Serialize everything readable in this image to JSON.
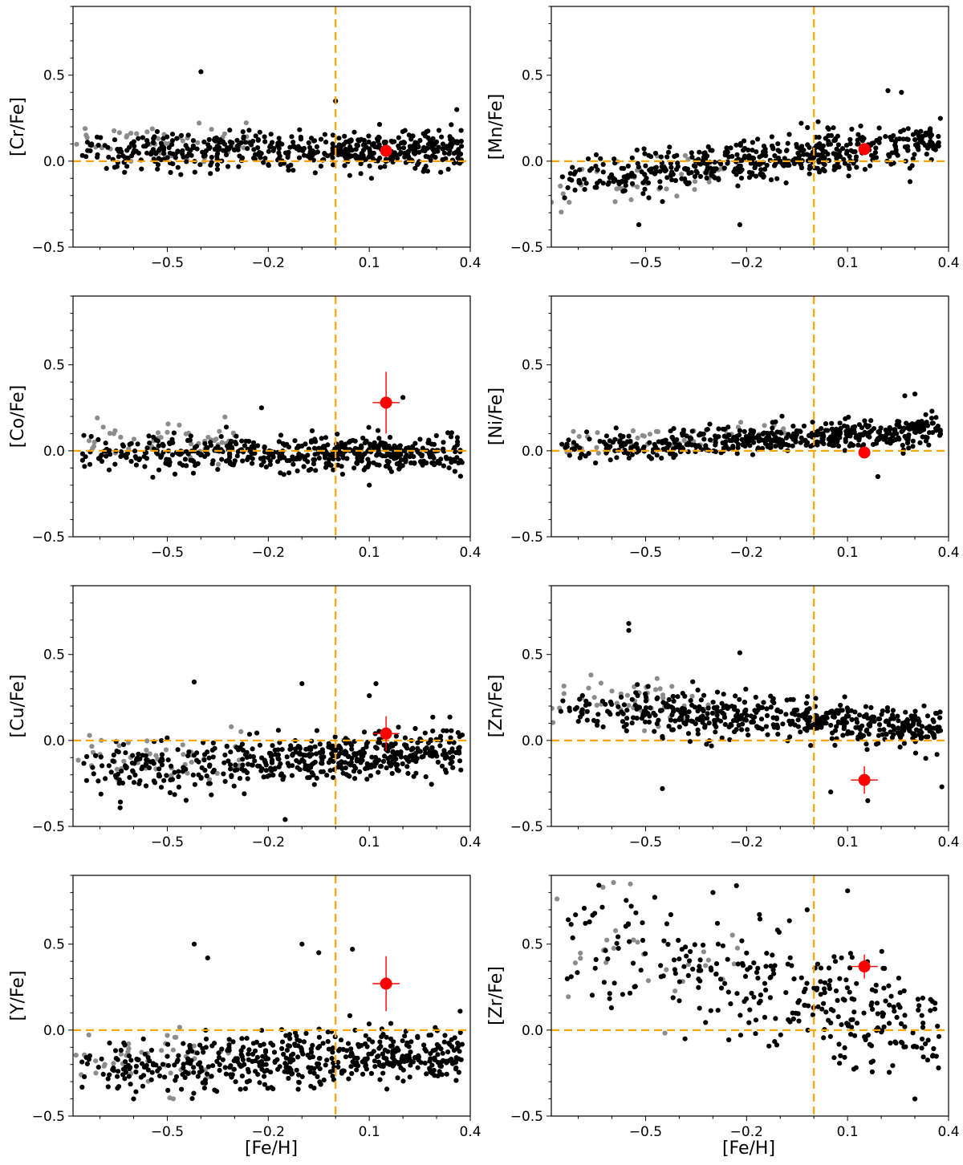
{
  "figure": {
    "shared_xlabel": "[Fe/H]"
  },
  "colors": {
    "sample_black": "#000000",
    "sample_gray": "#8c8c8c",
    "target_red": "#ff0000",
    "reference_orange": "#ffa500"
  },
  "chart_data": [
    {
      "type": "scatter",
      "panel": "Cr",
      "ylabel": "[Cr/Fe]",
      "xlabel": "",
      "xlim": [
        -0.78,
        0.4
      ],
      "ylim": [
        -0.5,
        0.9
      ],
      "xticks": [
        -0.5,
        -0.2,
        0.1,
        0.4
      ],
      "xtick_labels": [
        "−0.5",
        "−0.2",
        "0.1",
        "0.4"
      ],
      "yticks": [
        -0.5,
        0.0,
        0.5
      ],
      "ytick_labels": [
        "−0.5",
        "0.0",
        "0.5"
      ],
      "reference_lines": {
        "x": 0.0,
        "y": 0.0
      },
      "target": {
        "x": 0.15,
        "y": 0.06,
        "xerr": 0.0,
        "yerr": 0.0
      },
      "sample_cloud": {
        "n_black": 520,
        "n_gray": 45,
        "x_range": [
          -0.78,
          0.4
        ],
        "trend": "flat, slightly positive",
        "mean_at_xmin": 0.06,
        "mean_at_xmax": 0.06,
        "scatter": 0.055,
        "gray_x_max": -0.25,
        "gray_offset": 0.05,
        "outliers": [
          [
            -0.2,
            -0.02
          ],
          [
            -0.62,
            -0.03
          ],
          [
            0.36,
            0.3
          ],
          [
            -0.4,
            0.52
          ],
          [
            0.0,
            0.35
          ]
        ]
      }
    },
    {
      "type": "scatter",
      "panel": "Mn",
      "ylabel": "[Mn/Fe]",
      "xlabel": "",
      "xlim": [
        -0.78,
        0.4
      ],
      "ylim": [
        -0.5,
        0.9
      ],
      "xticks": [
        -0.5,
        -0.2,
        0.1,
        0.4
      ],
      "xtick_labels": [
        "−0.5",
        "−0.2",
        "0.1",
        "0.4"
      ],
      "yticks": [
        -0.5,
        0.0,
        0.5
      ],
      "ytick_labels": [
        "−0.5",
        "0.0",
        "0.5"
      ],
      "reference_lines": {
        "x": 0.0,
        "y": 0.0
      },
      "target": {
        "x": 0.15,
        "y": 0.07,
        "xerr": 0.0,
        "yerr": 0.0
      },
      "sample_cloud": {
        "n_black": 520,
        "n_gray": 45,
        "x_range": [
          -0.78,
          0.4
        ],
        "trend": "rising",
        "mean_at_xmin": -0.12,
        "mean_at_xmax": 0.12,
        "scatter": 0.06,
        "gray_x_max": -0.25,
        "gray_offset": -0.04,
        "outliers": [
          [
            -0.52,
            -0.37
          ],
          [
            -0.22,
            -0.37
          ],
          [
            0.22,
            0.41
          ],
          [
            0.26,
            0.4
          ]
        ]
      }
    },
    {
      "type": "scatter",
      "panel": "Co",
      "ylabel": "[Co/Fe]",
      "xlabel": "",
      "xlim": [
        -0.78,
        0.4
      ],
      "ylim": [
        -0.5,
        0.9
      ],
      "xticks": [
        -0.5,
        -0.2,
        0.1,
        0.4
      ],
      "xtick_labels": [
        "−0.5",
        "−0.2",
        "0.1",
        "0.4"
      ],
      "yticks": [
        -0.5,
        0.0,
        0.5
      ],
      "ytick_labels": [
        "−0.5",
        "0.0",
        "0.5"
      ],
      "reference_lines": {
        "x": 0.0,
        "y": 0.0
      },
      "target": {
        "x": 0.15,
        "y": 0.28,
        "xerr": 0.04,
        "yerr": 0.18
      },
      "sample_cloud": {
        "n_black": 520,
        "n_gray": 45,
        "x_range": [
          -0.78,
          0.4
        ],
        "trend": "flat, slightly negative",
        "mean_at_xmin": 0.0,
        "mean_at_xmax": -0.03,
        "scatter": 0.05,
        "gray_x_max": -0.3,
        "gray_offset": 0.08,
        "outliers": [
          [
            0.2,
            0.31
          ],
          [
            -0.22,
            0.25
          ],
          [
            0.1,
            -0.2
          ]
        ]
      }
    },
    {
      "type": "scatter",
      "panel": "Ni",
      "ylabel": "[Ni/Fe]",
      "xlabel": "",
      "xlim": [
        -0.78,
        0.4
      ],
      "ylim": [
        -0.5,
        0.9
      ],
      "xticks": [
        -0.5,
        -0.2,
        0.1,
        0.4
      ],
      "xtick_labels": [
        "−0.5",
        "−0.2",
        "0.1",
        "0.4"
      ],
      "yticks": [
        -0.5,
        0.0,
        0.5
      ],
      "ytick_labels": [
        "−0.5",
        "0.0",
        "0.5"
      ],
      "reference_lines": {
        "x": 0.0,
        "y": 0.0
      },
      "target": {
        "x": 0.15,
        "y": -0.01,
        "xerr": 0.0,
        "yerr": 0.0
      },
      "sample_cloud": {
        "n_black": 520,
        "n_gray": 45,
        "x_range": [
          -0.78,
          0.4
        ],
        "trend": "rising",
        "mean_at_xmin": 0.0,
        "mean_at_xmax": 0.12,
        "scatter": 0.04,
        "gray_x_max": -0.05,
        "gray_offset": 0.04,
        "outliers": [
          [
            0.27,
            0.32
          ],
          [
            0.3,
            0.33
          ],
          [
            0.19,
            -0.15
          ]
        ]
      }
    },
    {
      "type": "scatter",
      "panel": "Cu",
      "ylabel": "[Cu/Fe]",
      "xlabel": "",
      "xlim": [
        -0.78,
        0.4
      ],
      "ylim": [
        -0.5,
        0.9
      ],
      "xticks": [
        -0.5,
        -0.2,
        0.1,
        0.4
      ],
      "xtick_labels": [
        "−0.5",
        "−0.2",
        "0.1",
        "0.4"
      ],
      "yticks": [
        -0.5,
        0.0,
        0.5
      ],
      "ytick_labels": [
        "−0.5",
        "0.0",
        "0.5"
      ],
      "reference_lines": {
        "x": 0.0,
        "y": 0.0
      },
      "target": {
        "x": 0.15,
        "y": 0.04,
        "xerr": 0.04,
        "yerr": 0.1
      },
      "sample_cloud": {
        "n_black": 520,
        "n_gray": 45,
        "x_range": [
          -0.78,
          0.4
        ],
        "trend": "slightly rising",
        "mean_at_xmin": -0.17,
        "mean_at_xmax": -0.06,
        "scatter": 0.07,
        "gray_x_max": -0.25,
        "gray_offset": 0.05,
        "outliers": [
          [
            -0.1,
            0.33
          ],
          [
            0.1,
            0.26
          ],
          [
            0.12,
            0.33
          ],
          [
            -0.42,
            0.34
          ],
          [
            -0.15,
            -0.46
          ]
        ]
      }
    },
    {
      "type": "scatter",
      "panel": "Zn",
      "ylabel": "[Zn/Fe]",
      "xlabel": "",
      "xlim": [
        -0.78,
        0.4
      ],
      "ylim": [
        -0.5,
        0.9
      ],
      "xticks": [
        -0.5,
        -0.2,
        0.1,
        0.4
      ],
      "xtick_labels": [
        "−0.5",
        "−0.2",
        "0.1",
        "0.4"
      ],
      "yticks": [
        -0.5,
        0.0,
        0.5
      ],
      "ytick_labels": [
        "−0.5",
        "0.0",
        "0.5"
      ],
      "reference_lines": {
        "x": 0.0,
        "y": 0.0
      },
      "target": {
        "x": 0.15,
        "y": -0.23,
        "xerr": 0.04,
        "yerr": 0.08
      },
      "sample_cloud": {
        "n_black": 520,
        "n_gray": 45,
        "x_range": [
          -0.78,
          0.4
        ],
        "trend": "declining",
        "mean_at_xmin": 0.2,
        "mean_at_xmax": 0.07,
        "scatter": 0.06,
        "gray_x_max": -0.3,
        "gray_offset": 0.06,
        "outliers": [
          [
            -0.55,
            0.64
          ],
          [
            -0.55,
            0.68
          ],
          [
            -0.22,
            0.51
          ],
          [
            0.05,
            -0.3
          ],
          [
            0.16,
            -0.35
          ],
          [
            -0.45,
            -0.28
          ],
          [
            0.38,
            -0.27
          ]
        ]
      }
    },
    {
      "type": "scatter",
      "panel": "Y",
      "ylabel": "[Y/Fe]",
      "xlabel": "[Fe/H]",
      "xlim": [
        -0.78,
        0.4
      ],
      "ylim": [
        -0.5,
        0.9
      ],
      "xticks": [
        -0.5,
        -0.2,
        0.1,
        0.4
      ],
      "xtick_labels": [
        "−0.5",
        "−0.2",
        "0.1",
        "0.4"
      ],
      "yticks": [
        -0.5,
        0.0,
        0.5
      ],
      "ytick_labels": [
        "−0.5",
        "0.0",
        "0.5"
      ],
      "reference_lines": {
        "x": 0.0,
        "y": 0.0
      },
      "target": {
        "x": 0.15,
        "y": 0.27,
        "xerr": 0.04,
        "yerr": 0.16
      },
      "sample_cloud": {
        "n_black": 520,
        "n_gray": 45,
        "x_range": [
          -0.78,
          0.4
        ],
        "trend": "rising",
        "mean_at_xmin": -0.22,
        "mean_at_xmax": -0.14,
        "scatter": 0.08,
        "gray_x_max": -0.3,
        "gray_offset": 0.04,
        "outliers": [
          [
            -0.1,
            0.5
          ],
          [
            -0.05,
            0.45
          ],
          [
            0.05,
            0.47
          ],
          [
            -0.42,
            0.5
          ],
          [
            -0.38,
            0.42
          ],
          [
            0.37,
            0.11
          ],
          [
            -0.6,
            -0.4
          ]
        ]
      }
    },
    {
      "type": "scatter",
      "panel": "Zr",
      "ylabel": "[Zr/Fe]",
      "xlabel": "[Fe/H]",
      "xlim": [
        -0.78,
        0.4
      ],
      "ylim": [
        -0.5,
        0.9
      ],
      "xticks": [
        -0.5,
        -0.2,
        0.1,
        0.4
      ],
      "xtick_labels": [
        "−0.5",
        "−0.2",
        "0.1",
        "0.4"
      ],
      "yticks": [
        -0.5,
        0.0,
        0.5
      ],
      "ytick_labels": [
        "−0.5",
        "0.0",
        "0.5"
      ],
      "reference_lines": {
        "x": 0.0,
        "y": 0.0
      },
      "target": {
        "x": 0.15,
        "y": 0.37,
        "xerr": 0.04,
        "yerr": 0.07
      },
      "sample_cloud": {
        "n_black": 320,
        "n_gray": 30,
        "x_range": [
          -0.78,
          0.4
        ],
        "trend": "declining, broad",
        "mean_at_xmin": 0.55,
        "mean_at_xmax": 0.0,
        "scatter": 0.17,
        "gray_x_max": -0.2,
        "gray_offset": 0.05,
        "outliers": [
          [
            -0.23,
            0.84
          ],
          [
            -0.3,
            0.8
          ],
          [
            0.1,
            0.81
          ],
          [
            -0.02,
            0.7
          ],
          [
            0.3,
            -0.4
          ]
        ]
      }
    }
  ]
}
